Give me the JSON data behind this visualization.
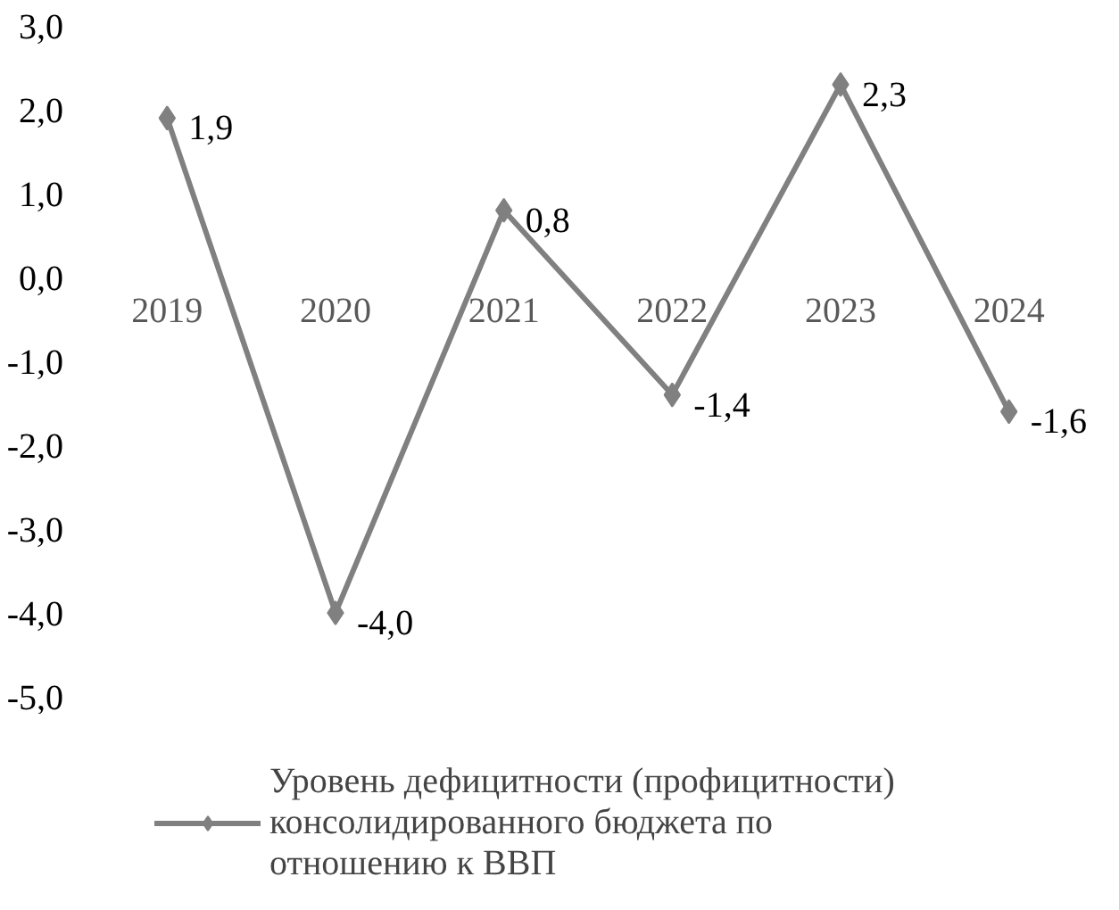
{
  "chart_data": {
    "type": "line",
    "categories": [
      "2019",
      "2020",
      "2021",
      "2022",
      "2023",
      "2024"
    ],
    "series": [
      {
        "name": "Уровень дефицитности (профицитности) консолидированного бюджета по отношению к ВВП",
        "color": "#808080",
        "values": [
          1.9,
          -4.0,
          0.8,
          -1.4,
          2.3,
          -1.6
        ],
        "value_labels": [
          "1,9",
          "-4,0",
          "0,8",
          "-1,4",
          "2,3",
          "-1,6"
        ]
      }
    ],
    "ylim": [
      -5,
      3
    ],
    "yticks": [
      {
        "value": 3,
        "label": "3,0"
      },
      {
        "value": 2,
        "label": "2,0"
      },
      {
        "value": 1,
        "label": "1,0"
      },
      {
        "value": 0,
        "label": "0,0"
      },
      {
        "value": -1,
        "label": "-1,0"
      },
      {
        "value": -2,
        "label": "-2,0"
      },
      {
        "value": -3,
        "label": "-3,0"
      },
      {
        "value": -4,
        "label": "-4,0"
      },
      {
        "value": -5,
        "label": "-5,0"
      }
    ],
    "grid": false,
    "legend": "bottom",
    "marker": "diamond",
    "line_style": "solid"
  }
}
